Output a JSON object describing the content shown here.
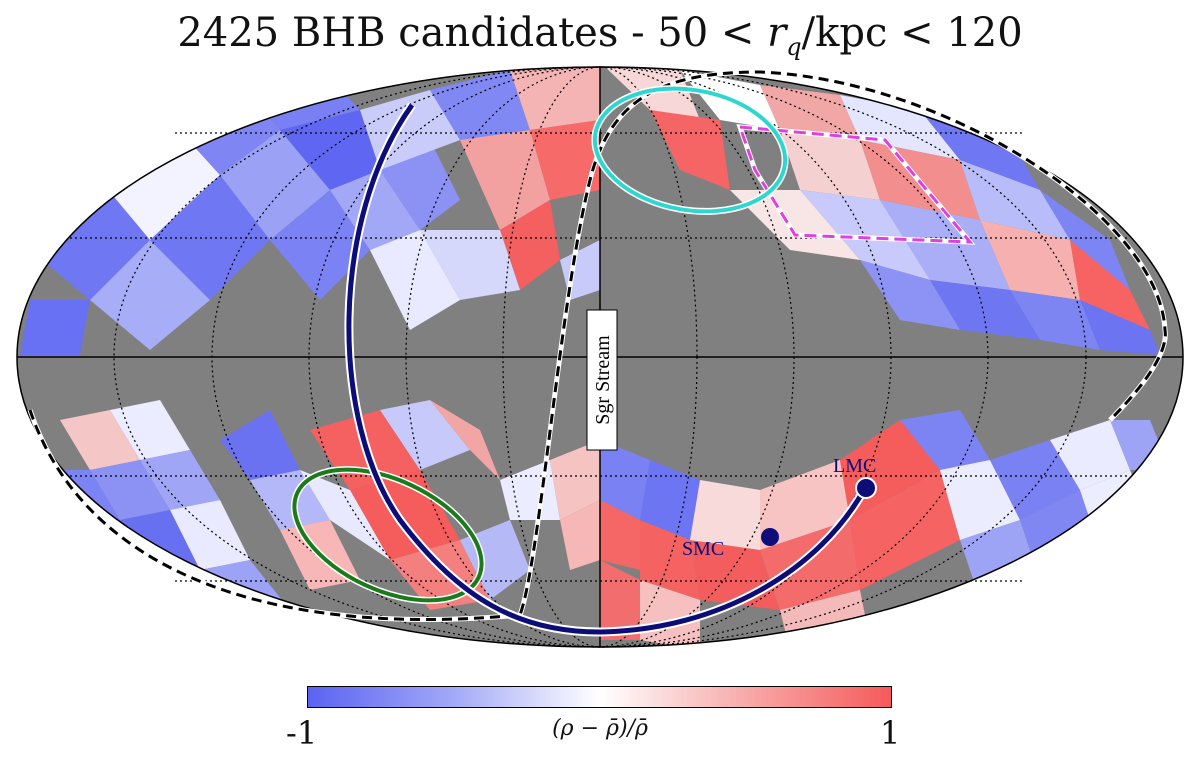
{
  "title": {
    "prefix": "2425 BHB candidates - 50 <",
    "var": "r",
    "sub": "q",
    "suffix": "/kpc < 120"
  },
  "colorbar": {
    "min_label": "-1",
    "max_label": "1",
    "label": "(ρ − ρ̄)/ρ̄",
    "colors": [
      "#5b63f2",
      "#ffffff",
      "#f65a5a"
    ]
  },
  "annotations": {
    "sgr_stream": "Sgr Stream",
    "lmc": "LMC",
    "smc": "SMC"
  },
  "chart_data": {
    "type": "heatmap",
    "projection": "mollweide",
    "title": "2425 BHB candidates - 50 < r_q/kpc < 120",
    "colorbar_range": [
      -1,
      1
    ],
    "colorbar_label": "(ρ − ρ̄)/ρ̄",
    "masked_color": "#808080",
    "grid": true,
    "overlays": [
      "Sgr Stream (dashed)",
      "LMC orbit (navy)",
      "LMC",
      "SMC",
      "cyan ellipse",
      "green ellipse",
      "magenta dashed region"
    ]
  },
  "colors": {
    "masked": "#808080",
    "orbit": "#0d0d7a",
    "cyan_ellipse": "#2fd6d0",
    "green_ellipse": "#1b7a1b",
    "magenta": "#e040e0"
  }
}
